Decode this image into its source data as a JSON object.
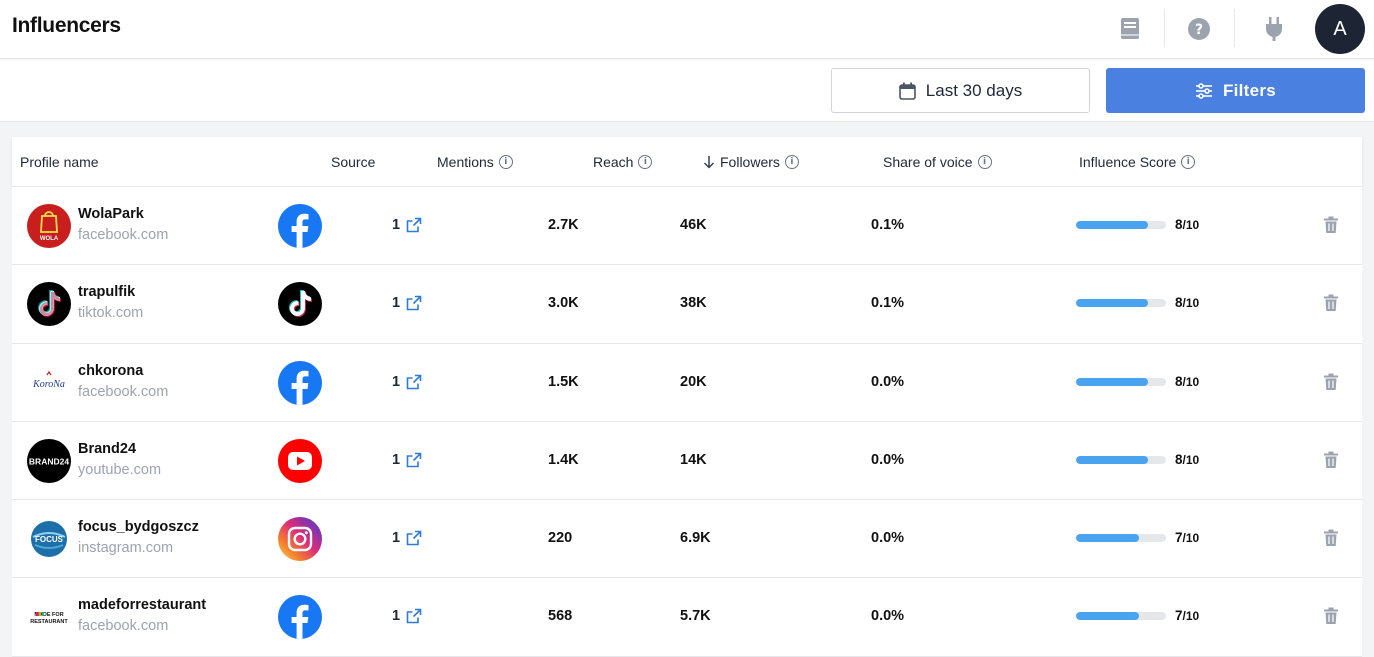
{
  "page": {
    "title": "Influencers"
  },
  "topbar": {
    "icons": [
      "book-icon",
      "help-icon",
      "plug-icon"
    ],
    "avatar_letter": "A"
  },
  "toolbar": {
    "date_range_label": "Last 30 days",
    "filters_label": "Filters",
    "accent": "#4a80df"
  },
  "table": {
    "columns": {
      "profile_name": "Profile name",
      "source": "Source",
      "mentions": "Mentions",
      "reach": "Reach",
      "followers": "Followers",
      "share_of_voice": "Share of voice",
      "influence_score": "Influence Score"
    },
    "sort": {
      "column": "followers",
      "direction": "desc"
    },
    "rows": [
      {
        "name": "WolaPark",
        "domain": "facebook.com",
        "source": "facebook",
        "mentions": "1",
        "reach": "2.7K",
        "followers": "46K",
        "share_of_voice": "0.1%",
        "score": 8,
        "score_max": "/10"
      },
      {
        "name": "trapulfik",
        "domain": "tiktok.com",
        "source": "tiktok",
        "mentions": "1",
        "reach": "3.0K",
        "followers": "38K",
        "share_of_voice": "0.1%",
        "score": 8,
        "score_max": "/10"
      },
      {
        "name": "chkorona",
        "domain": "facebook.com",
        "source": "facebook",
        "mentions": "1",
        "reach": "1.5K",
        "followers": "20K",
        "share_of_voice": "0.0%",
        "score": 8,
        "score_max": "/10"
      },
      {
        "name": "Brand24",
        "domain": "youtube.com",
        "source": "youtube",
        "mentions": "1",
        "reach": "1.4K",
        "followers": "14K",
        "share_of_voice": "0.0%",
        "score": 8,
        "score_max": "/10"
      },
      {
        "name": "focus_bydgoszcz",
        "domain": "instagram.com",
        "source": "instagram",
        "mentions": "1",
        "reach": "220",
        "followers": "6.9K",
        "share_of_voice": "0.0%",
        "score": 7,
        "score_max": "/10"
      },
      {
        "name": "madeforrestaurant",
        "domain": "facebook.com",
        "source": "facebook",
        "mentions": "1",
        "reach": "568",
        "followers": "5.7K",
        "share_of_voice": "0.0%",
        "score": 7,
        "score_max": "/10"
      }
    ],
    "avatar_logos": {
      "wolapark": "WOLA",
      "korona": "KoroNa",
      "brand24": "BRAND24",
      "focus": "FOCUS",
      "madefor_top": "MADE FOR",
      "madefor_bottom": "RESTAURANT"
    }
  }
}
